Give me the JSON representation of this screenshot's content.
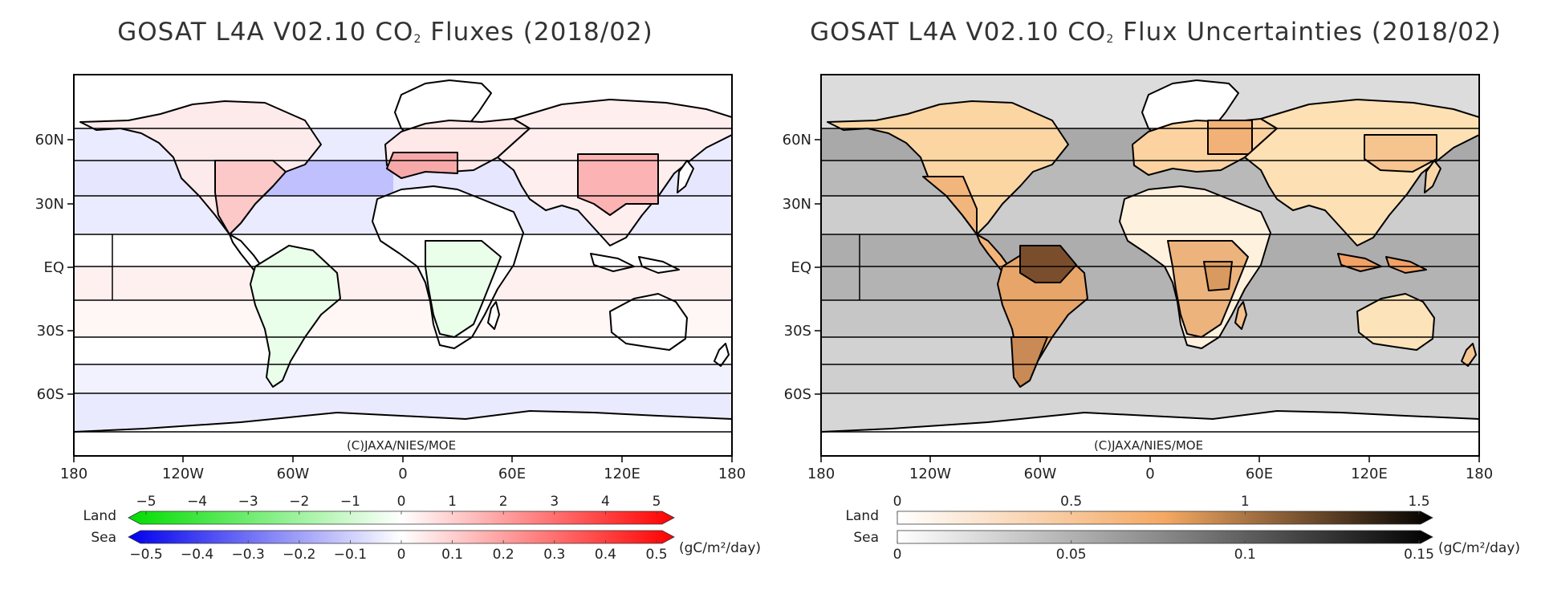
{
  "left_panel": {
    "title_prefix": "GOSAT L4A V02.10 CO",
    "title_sub": "2",
    "title_suffix": " Fluxes (2018/02)",
    "credit": "(C)JAXA/NIES/MOE",
    "ocean_color": "#eaeaff",
    "land_color": "#ffffff",
    "colorbar": {
      "land_label": "Land",
      "sea_label": "Sea",
      "units": "(gC/m²/day)",
      "land_ticks": [
        "−5",
        "−4",
        "−3",
        "−2",
        "−1",
        "0",
        "1",
        "2",
        "3",
        "4",
        "5"
      ],
      "sea_ticks": [
        "−0.5",
        "−0.4",
        "−0.3",
        "−0.2",
        "−0.1",
        "0",
        "0.1",
        "0.2",
        "0.3",
        "0.4",
        "0.5"
      ],
      "land_gradient": [
        "#00dd00",
        "#ffffff",
        "#ff0000"
      ],
      "sea_gradient": [
        "#0000ee",
        "#ffffff",
        "#ff0000"
      ]
    }
  },
  "right_panel": {
    "title_prefix": "GOSAT L4A V02.10 CO",
    "title_sub": "2",
    "title_suffix": " Flux Uncertainties (2018/02)",
    "credit": "(C)JAXA/NIES/MOE",
    "ocean_color": "#c8c8c8",
    "land_color": "#fbd9a6",
    "colorbar": {
      "land_label": "Land",
      "sea_label": "Sea",
      "units": "(gC/m²/day)",
      "land_ticks": [
        "0",
        "0.5",
        "1",
        "1.5"
      ],
      "sea_ticks": [
        "0",
        "0.05",
        "0.1",
        "0.15"
      ],
      "land_gradient": [
        "#ffffff",
        "#f4a862",
        "#000000"
      ],
      "sea_gradient": [
        "#ffffff",
        "#888888",
        "#000000"
      ]
    }
  },
  "axes": {
    "lat_labels": [
      "60N",
      "30N",
      "EQ",
      "30S",
      "60S"
    ],
    "lon_labels": [
      "180",
      "120W",
      "60W",
      "0",
      "60E",
      "120E",
      "180"
    ]
  }
}
